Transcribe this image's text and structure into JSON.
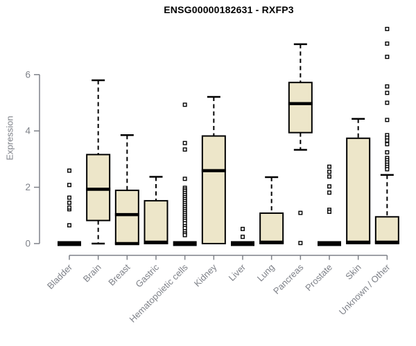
{
  "title": "ENSG00000182631 - RXFP3",
  "colors": {
    "background": "#FFFFFF",
    "box_fill": "#EDE6C9",
    "box_border": "#000000",
    "median": "#000000",
    "whisker": "#000000",
    "outlier_stroke": "#000000",
    "outlier_fill": "#FFFFFF",
    "axis": "#7E8188",
    "tick_label": "#7E8188",
    "title": "#000000"
  },
  "chart_data": {
    "type": "boxplot",
    "title": "ENSG00000182631 - RXFP3",
    "xlabel": "",
    "ylabel": "Expression",
    "grid": false,
    "legend": false,
    "y_ticks": [
      0,
      2,
      4,
      6
    ],
    "ylim": [
      -0.2,
      7.8
    ],
    "categories": [
      "Bladder",
      "Brain",
      "Breast",
      "Gastric",
      "Hematopoietic cells",
      "Kidney",
      "Liver",
      "Lung",
      "Pancreas",
      "Prostate",
      "Skin",
      "Unknown / Other"
    ],
    "series": [
      {
        "name": "Bladder",
        "q1": 0,
        "median": 0,
        "q3": 0,
        "whisker_low": 0,
        "whisker_high": 0,
        "outliers": [
          0.65,
          1.22,
          1.28,
          1.45,
          1.63,
          2.08,
          2.59
        ]
      },
      {
        "name": "Brain",
        "q1": 0.82,
        "median": 1.93,
        "q3": 3.16,
        "whisker_low": 0,
        "whisker_high": 5.8,
        "outliers": []
      },
      {
        "name": "Breast",
        "q1": 0,
        "median": 1.03,
        "q3": 1.89,
        "whisker_low": 0,
        "whisker_high": 3.85,
        "outliers": [],
        "heavy_zero_line": true
      },
      {
        "name": "Gastric",
        "q1": 0,
        "median": 0.05,
        "q3": 1.52,
        "whisker_low": 0,
        "whisker_high": 2.37,
        "outliers": []
      },
      {
        "name": "Hematopoietic cells",
        "q1": 0,
        "median": 0,
        "q3": 0,
        "whisker_low": 0,
        "whisker_high": 0,
        "outliers": [
          4.93,
          3.57,
          3.34,
          2.3,
          1.98,
          1.92,
          1.86,
          1.79,
          1.72,
          1.65,
          1.58,
          1.51,
          1.44,
          1.37,
          1.3,
          1.23,
          1.16,
          1.09,
          1.02,
          0.95,
          0.88,
          0.81,
          0.72,
          0.62,
          0.55,
          0.44,
          0.36,
          0.3
        ]
      },
      {
        "name": "Kidney",
        "q1": 0,
        "median": 2.59,
        "q3": 3.82,
        "whisker_low": 0,
        "whisker_high": 5.21,
        "outliers": []
      },
      {
        "name": "Liver",
        "q1": 0,
        "median": 0,
        "q3": 0,
        "whisker_low": 0,
        "whisker_high": 0,
        "outliers": [
          0.52,
          0.24
        ]
      },
      {
        "name": "Lung",
        "q1": 0,
        "median": 0.05,
        "q3": 1.08,
        "whisker_low": 0,
        "whisker_high": 2.36,
        "outliers": []
      },
      {
        "name": "Pancreas",
        "q1": 3.94,
        "median": 4.97,
        "q3": 5.72,
        "whisker_low": 3.33,
        "whisker_high": 7.08,
        "outliers": [
          1.09,
          0.02
        ]
      },
      {
        "name": "Prostate",
        "q1": 0,
        "median": 0,
        "q3": 0,
        "whisker_low": 0,
        "whisker_high": 0,
        "outliers": [
          2.73,
          2.55,
          2.38,
          2.03,
          1.81,
          1.2,
          1.13
        ]
      },
      {
        "name": "Skin",
        "q1": 0,
        "median": 0.05,
        "q3": 3.74,
        "whisker_low": 0,
        "whisker_high": 4.43,
        "outliers": []
      },
      {
        "name": "Unknown / Other",
        "q1": 0,
        "median": 0.05,
        "q3": 0.95,
        "whisker_low": 0,
        "whisker_high": 2.44,
        "outliers": [
          7.62,
          7.1,
          6.63,
          5.58,
          5.35,
          5.0,
          4.39,
          3.85,
          3.76,
          3.66,
          3.53,
          3.24,
          3.04,
          2.96,
          2.88,
          2.8,
          2.72,
          2.64
        ]
      }
    ]
  }
}
